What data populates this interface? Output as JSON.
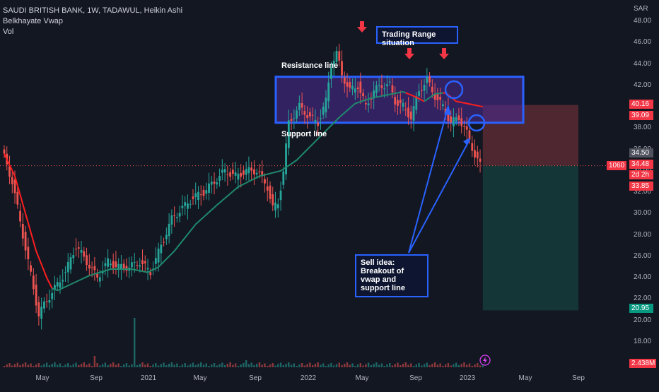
{
  "legend": {
    "symbol_line": "SAUDI BRITISH BANK, 1W, TADAWUL, Heikin Ashi",
    "indicator": "Belkhayate Vwap",
    "volume": "Vol"
  },
  "currency": "SAR",
  "annotations": {
    "trading_range": "Trading Range situation",
    "resistance": "Resistance line",
    "support": "Support line",
    "sell_idea": "Sell idea: Breakout of vwap and support line"
  },
  "price_tags": {
    "target_high": "40.16",
    "level_1": "39.09",
    "entry": "34.50",
    "last": "34.48",
    "countdown": "2d 2h",
    "level_2": "33.85",
    "target_low": "20.95",
    "volume_last": "2.438M",
    "left_count": "1060"
  },
  "colors": {
    "background": "#131722",
    "up": "#26a69a",
    "down": "#ef5350",
    "vwap_up": "#1f8a6d",
    "vwap_down": "#ff1e1e",
    "box": "#2962ff",
    "box_fill": "#4a2a8c",
    "risk": "#5b2a33",
    "reward": "#163c3a",
    "arrow_red": "#f23645"
  },
  "chart_data": {
    "type": "candlestick",
    "title": "SAUDI BRITISH BANK, 1W, TADAWUL, Heikin Ashi",
    "ylabel": "SAR",
    "ylim": [
      17,
      49
    ],
    "y_ticks": [
      "48.00",
      "46.00",
      "44.00",
      "42.00",
      "40.00",
      "38.00",
      "36.00",
      "34.00",
      "32.00",
      "30.00",
      "28.00",
      "26.00",
      "24.00",
      "22.00",
      "20.00",
      "18.00"
    ],
    "x_ticks": [
      "May",
      "Sep",
      "2021",
      "May",
      "Sep",
      "2022",
      "May",
      "Sep",
      "2023",
      "May",
      "Sep"
    ],
    "price_anchors": [
      [
        0,
        36
      ],
      [
        4,
        33
      ],
      [
        8,
        28
      ],
      [
        12,
        23
      ],
      [
        14,
        20.5
      ],
      [
        16,
        21.5
      ],
      [
        20,
        23
      ],
      [
        24,
        24.5
      ],
      [
        28,
        27
      ],
      [
        32,
        25.5
      ],
      [
        36,
        24
      ],
      [
        40,
        25.5
      ],
      [
        44,
        25
      ],
      [
        48,
        25
      ],
      [
        52,
        25.5
      ],
      [
        56,
        24.5
      ],
      [
        60,
        27
      ],
      [
        64,
        29.5
      ],
      [
        68,
        30.5
      ],
      [
        72,
        31.5
      ],
      [
        76,
        32
      ],
      [
        80,
        33
      ],
      [
        84,
        34
      ],
      [
        88,
        33.5
      ],
      [
        92,
        34
      ],
      [
        96,
        34
      ],
      [
        100,
        32.5
      ],
      [
        102,
        30.5
      ],
      [
        104,
        31
      ],
      [
        106,
        34
      ],
      [
        108,
        38.5
      ],
      [
        112,
        40
      ],
      [
        116,
        39
      ],
      [
        119,
        38.5
      ],
      [
        122,
        40.5
      ],
      [
        124,
        44
      ],
      [
        126,
        45
      ],
      [
        128,
        43
      ],
      [
        131,
        41.5
      ],
      [
        134,
        42
      ],
      [
        137,
        40
      ],
      [
        140,
        41.5
      ],
      [
        143,
        42
      ],
      [
        146,
        42
      ],
      [
        148,
        40.5
      ],
      [
        151,
        40
      ],
      [
        154,
        39
      ],
      [
        157,
        41.5
      ],
      [
        160,
        42.5
      ],
      [
        163,
        41
      ],
      [
        166,
        40
      ],
      [
        169,
        38.5
      ],
      [
        172,
        39
      ],
      [
        175,
        37.5
      ],
      [
        178,
        35.5
      ],
      [
        180,
        34.5
      ]
    ],
    "vwap": [
      [
        0,
        35.6
      ],
      [
        4,
        33.5
      ],
      [
        8,
        30
      ],
      [
        12,
        26.5
      ],
      [
        16,
        24
      ],
      [
        18,
        23
      ],
      [
        20,
        22.8
      ],
      [
        26,
        23.5
      ],
      [
        32,
        24.2
      ],
      [
        40,
        24.8
      ],
      [
        48,
        24.8
      ],
      [
        54,
        24.5
      ],
      [
        58,
        25
      ],
      [
        64,
        26.5
      ],
      [
        72,
        29
      ],
      [
        80,
        30.8
      ],
      [
        88,
        32.5
      ],
      [
        96,
        33.5
      ],
      [
        104,
        34
      ],
      [
        110,
        35
      ],
      [
        118,
        37
      ],
      [
        126,
        39
      ],
      [
        132,
        40.3
      ],
      [
        138,
        40.8
      ],
      [
        146,
        41.2
      ],
      [
        150,
        41.4
      ],
      [
        154,
        41
      ],
      [
        158,
        40.5
      ],
      [
        162,
        41.2
      ],
      [
        166,
        41.3
      ],
      [
        170,
        40.5
      ],
      [
        176,
        40.2
      ],
      [
        180,
        40.0
      ]
    ],
    "range_box": {
      "top": 42.8,
      "bottom": 38.5
    },
    "position": {
      "stop": 40.16,
      "entry": 34.5,
      "target": 20.95
    }
  }
}
